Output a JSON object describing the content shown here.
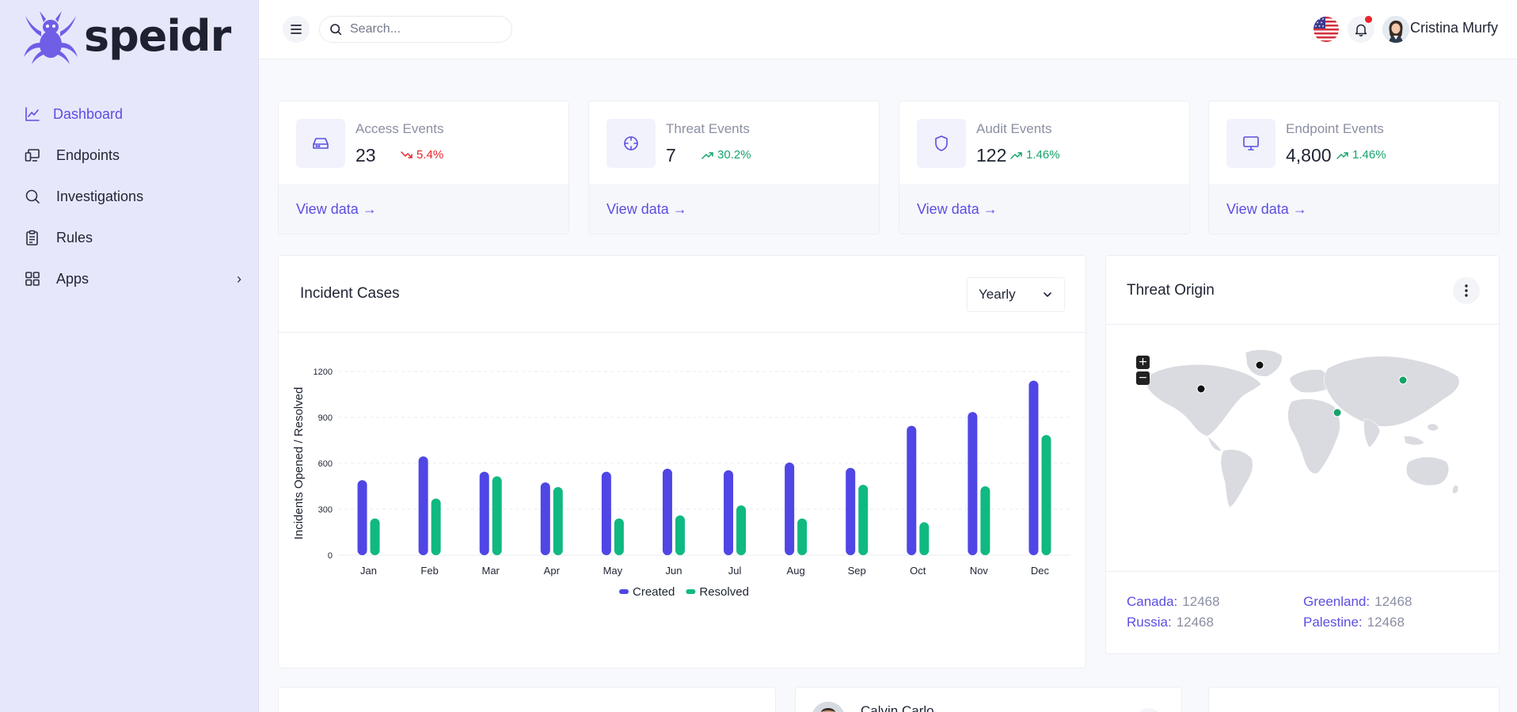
{
  "app": {
    "brand": "speidr",
    "accent": "#5b4ee0"
  },
  "sidebar": {
    "items": [
      {
        "label": "Dashboard",
        "icon": "chart-line-icon",
        "active": true
      },
      {
        "label": "Endpoints",
        "icon": "devices-icon"
      },
      {
        "label": "Investigations",
        "icon": "search-icon"
      },
      {
        "label": "Rules",
        "icon": "clipboard-icon"
      },
      {
        "label": "Apps",
        "icon": "grid-icon",
        "has_submenu": true
      }
    ]
  },
  "topbar": {
    "search_placeholder": "Search...",
    "user_name": "Cristina Murfy",
    "has_notification": true
  },
  "stats": [
    {
      "title": "Access Events",
      "value": "23",
      "trend": "5.4%",
      "direction": "down",
      "link": "View data →"
    },
    {
      "title": "Threat Events",
      "value": "7",
      "trend": "30.2%",
      "direction": "up",
      "link": "View data →"
    },
    {
      "title": "Audit Events",
      "value": "122",
      "trend": "1.46%",
      "direction": "up",
      "link": "View data →"
    },
    {
      "title": "Endpoint Events",
      "value": "4,800",
      "trend": "1.46%",
      "direction": "up",
      "link": "View data →"
    }
  ],
  "incident": {
    "title": "Incident Cases",
    "period": "Yearly"
  },
  "chart_data": {
    "type": "bar",
    "categories": [
      "Jan",
      "Feb",
      "Mar",
      "Apr",
      "May",
      "Jun",
      "Jul",
      "Aug",
      "Sep",
      "Oct",
      "Nov",
      "Dec"
    ],
    "series": [
      {
        "name": "Created",
        "color": "#4f46e5",
        "values": [
          490,
          645,
          545,
          475,
          545,
          565,
          555,
          605,
          570,
          845,
          935,
          1140
        ]
      },
      {
        "name": "Resolved",
        "color": "#10b981",
        "values": [
          240,
          370,
          515,
          445,
          240,
          260,
          325,
          240,
          460,
          215,
          450,
          785
        ]
      }
    ],
    "ylabel": "Incidents Opened / Resolved",
    "xlabel": "",
    "ylim": [
      0,
      1200
    ],
    "yticks": [
      0,
      300,
      600,
      900,
      1200
    ],
    "legend": "bottom",
    "grid": true
  },
  "threat": {
    "title": "Threat Origin",
    "zoom_in": "+",
    "zoom_out": "−",
    "origins": [
      {
        "country": "Canada:",
        "count": "12468"
      },
      {
        "country": "Greenland:",
        "count": "12468"
      },
      {
        "country": "Russia:",
        "count": "12468"
      },
      {
        "country": "Palestine:",
        "count": "12468"
      }
    ]
  },
  "bottom": {
    "contact_name": "Calvin Carlo"
  }
}
